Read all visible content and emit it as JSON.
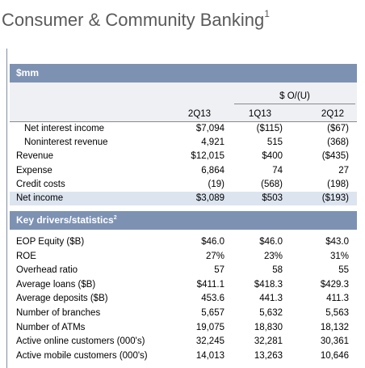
{
  "header": {
    "title": "Consumer & Community Banking",
    "title_sup": "1"
  },
  "table": {
    "unit": "$mm",
    "group_header": "$ O/(U)",
    "columns": [
      "2Q13",
      "1Q13",
      "2Q12"
    ],
    "rows": [
      {
        "label": "Net interest income",
        "indent": true,
        "values": [
          "$7,094",
          "($115)",
          "($67)"
        ]
      },
      {
        "label": "Noninterest revenue",
        "indent": true,
        "values": [
          "4,921",
          "515",
          "(368)"
        ]
      },
      {
        "label": "Revenue",
        "values": [
          "$12,015",
          "$400",
          "($435)"
        ]
      },
      {
        "label": "Expense",
        "values": [
          "6,864",
          "74",
          "27"
        ]
      },
      {
        "label": "Credit costs",
        "values": [
          "(19)",
          "(568)",
          "(198)"
        ]
      },
      {
        "label": "Net income",
        "highlight": true,
        "values": [
          "$3,089",
          "$503",
          "($193)"
        ]
      }
    ],
    "section": {
      "title": "Key drivers/statistics",
      "title_sup": "2",
      "rows": [
        {
          "label": "EOP Equity ($B)",
          "values": [
            "$46.0",
            "$46.0",
            "$43.0"
          ]
        },
        {
          "label": "ROE",
          "values": [
            "27%",
            "23%",
            "31%"
          ]
        },
        {
          "label": "Overhead ratio",
          "values": [
            "57",
            "58",
            "55"
          ]
        },
        {
          "label": "Average loans ($B)",
          "values": [
            "$411.1",
            "$418.3",
            "$429.3"
          ]
        },
        {
          "label": "Average deposits ($B)",
          "values": [
            "453.6",
            "441.3",
            "411.3"
          ]
        },
        {
          "label": "Number of branches",
          "values": [
            "5,657",
            "5,632",
            "5,563"
          ]
        },
        {
          "label": "Number of ATMs",
          "values": [
            "19,075",
            "18,830",
            "18,132"
          ]
        },
        {
          "label": "Active online customers (000's)",
          "values": [
            "32,245",
            "32,281",
            "30,361"
          ]
        },
        {
          "label": "Active mobile customers (000's)",
          "values": [
            "14,013",
            "13,263",
            "10,646"
          ]
        }
      ]
    }
  }
}
